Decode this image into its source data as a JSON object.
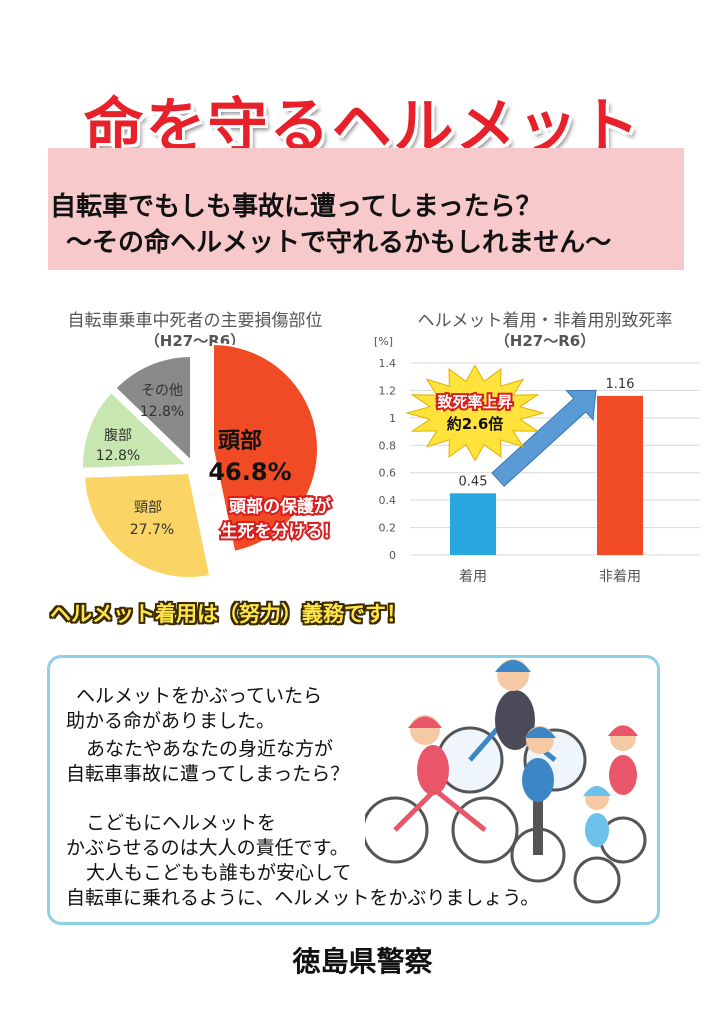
{
  "header": {
    "title": "命を守るヘルメット",
    "subtitle_line1": "自転車でもしも事故に遭ってしまったら？",
    "subtitle_line2": "〜その命ヘルメットで守れるかもしれません〜"
  },
  "colors": {
    "title_red": "#e8202a",
    "band_pink": "#f8c9ca",
    "bar_helmet": "#29a8e0",
    "bar_no_helmet": "#f04b24",
    "arrow_blue": "#5b9bd5"
  },
  "chart_data": [
    {
      "type": "pie",
      "title": "自転車乗車中死者の主要損傷部位",
      "subtitle": "（H27〜R6）",
      "slices": [
        {
          "label": "頭部",
          "value": 46.8,
          "display": "46.8%",
          "color": "#f04b24"
        },
        {
          "label": "頸部",
          "value": 27.7,
          "display": "27.7%",
          "color": "#fad565"
        },
        {
          "label": "腹部",
          "value": 12.8,
          "display": "12.8%",
          "color": "#c8e6b0"
        },
        {
          "label": "その他",
          "value": 12.8,
          "display": "12.8%",
          "color": "#8a8a8a"
        }
      ],
      "annotation_line1": "頭部の保護が",
      "annotation_line2": "生死を分ける！"
    },
    {
      "type": "bar",
      "title": "ヘルメット着用・非着用別致死率",
      "subtitle": "（H27〜R6）",
      "ylabel": "[%]",
      "ylim": [
        0,
        1.4
      ],
      "yticks": [
        "0",
        "0.2",
        "0.4",
        "0.6",
        "0.8",
        "1",
        "1.2",
        "1.4"
      ],
      "categories": [
        "着用",
        "非着用"
      ],
      "values": [
        0.45,
        1.16
      ],
      "value_labels": [
        "0.45",
        "1.16"
      ],
      "grid": true,
      "burst_line1": "致死率上昇",
      "burst_line2": "約2.6倍"
    }
  ],
  "mandate": "ヘルメット着用は（努力）義務です！",
  "message": [
    "ヘルメットをかぶっていたら",
    "助かる命がありました。",
    "あなたやあなたの身近な方が",
    "自転車事故に遭ってしまったら？",
    "こどもにヘルメットを",
    "かぶらせるのは大人の責任です。",
    "大人もこどもも誰もが安心して",
    "自転車に乗れるように、ヘルメットをかぶりましょう。"
  ],
  "footer": {
    "agency": "徳島県警察"
  }
}
